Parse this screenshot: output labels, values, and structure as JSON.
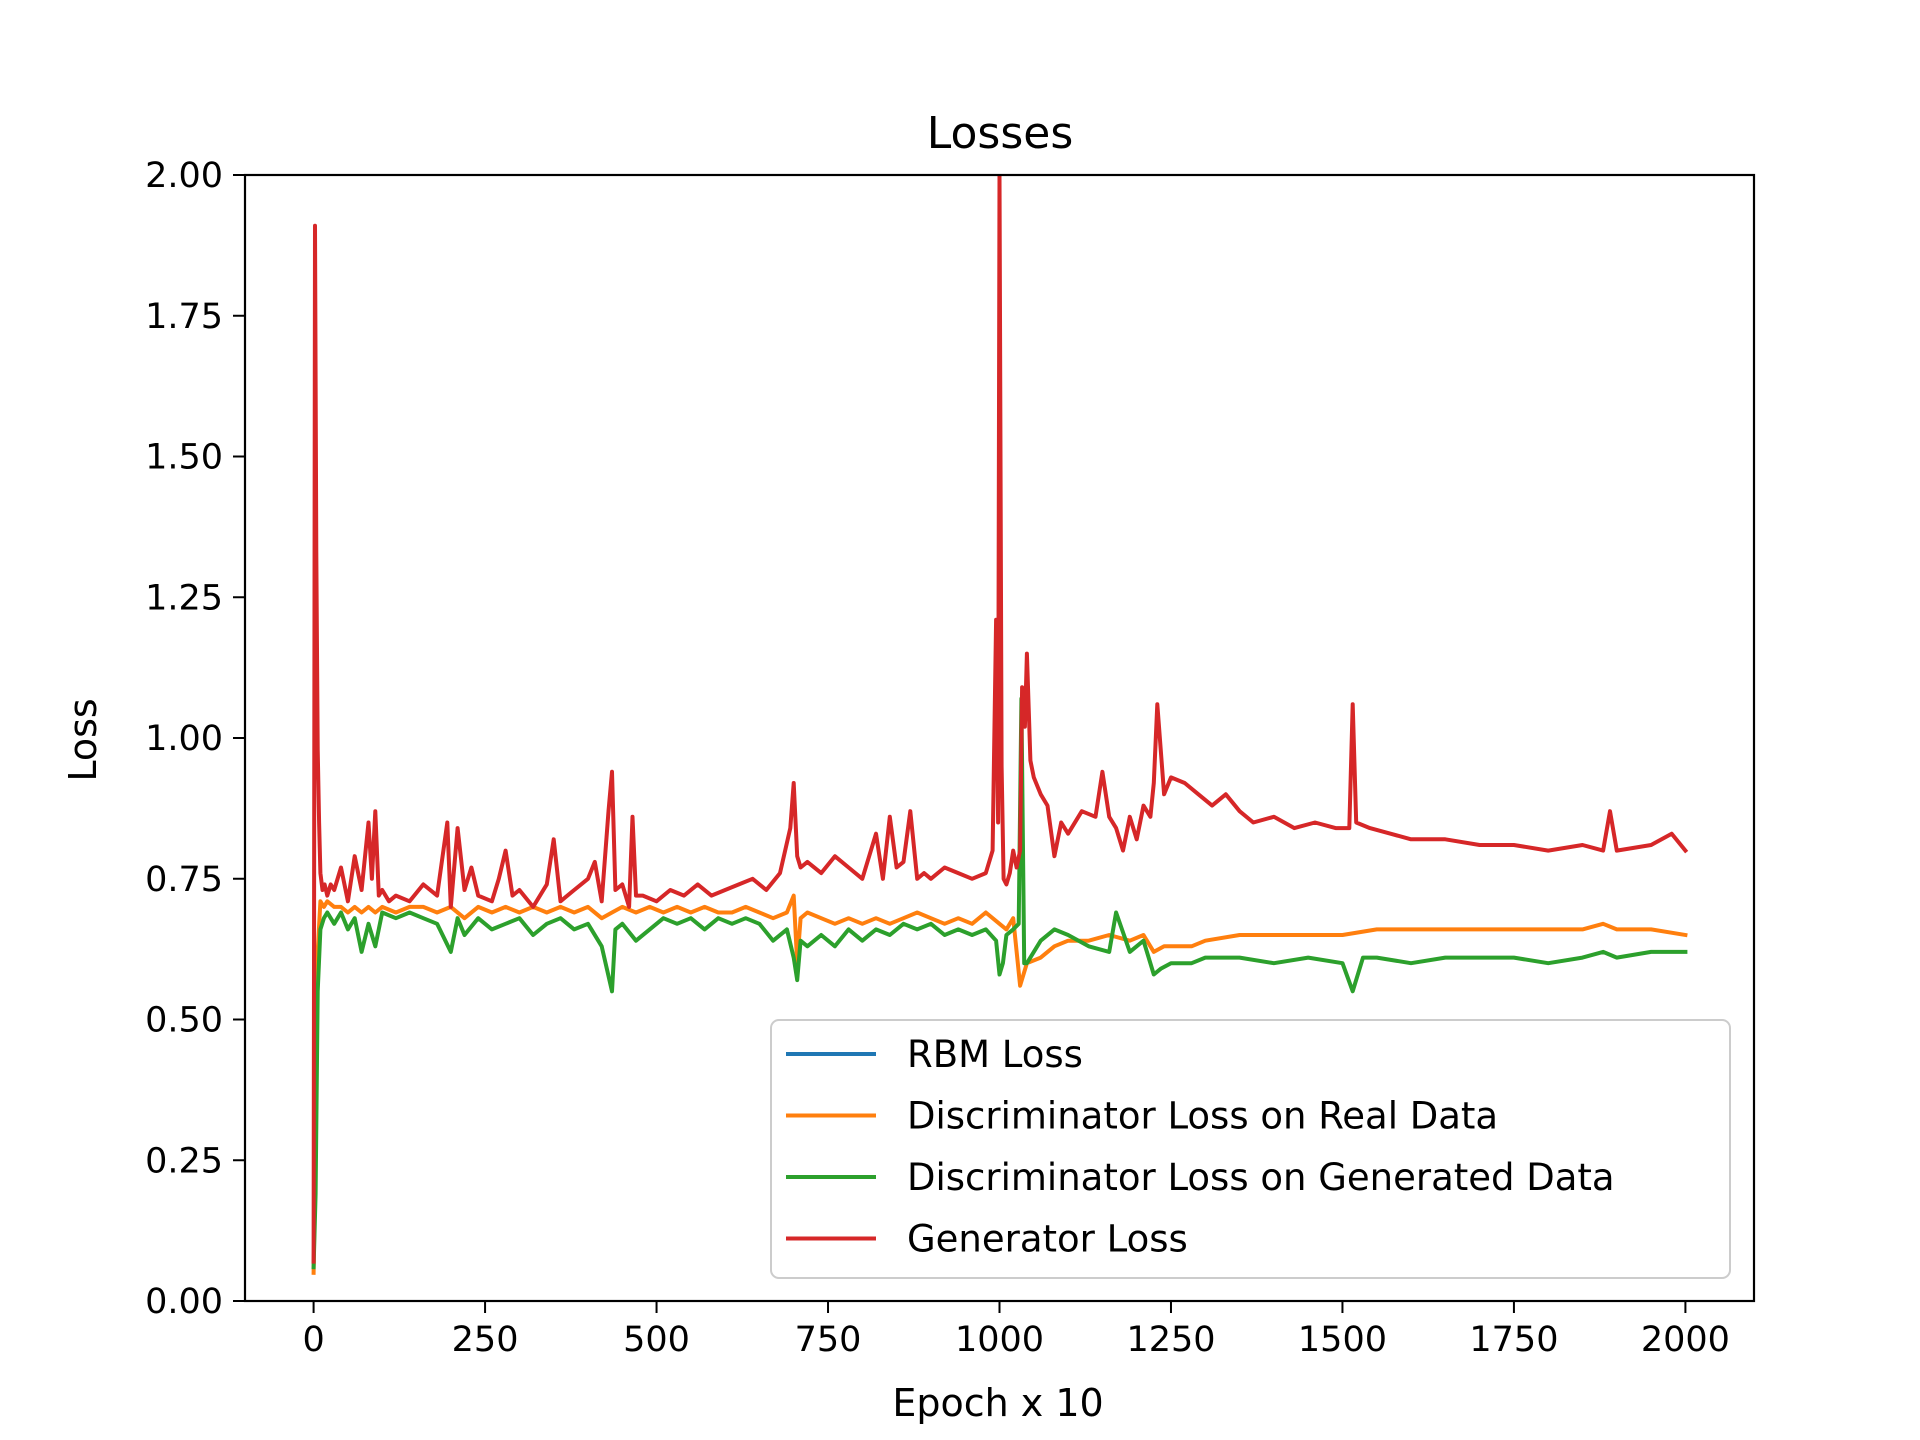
{
  "chart_data": {
    "type": "line",
    "title": "Losses",
    "xlabel": "Epoch x 10",
    "ylabel": "Loss",
    "xlim": [
      -100,
      2100
    ],
    "ylim": [
      0,
      2.0
    ],
    "xticks": [
      0,
      250,
      500,
      750,
      1000,
      1250,
      1500,
      1750,
      2000
    ],
    "xtick_labels": [
      "0",
      "250",
      "500",
      "750",
      "1000",
      "1250",
      "1500",
      "1750",
      "2000"
    ],
    "yticks": [
      0,
      0.25,
      0.5,
      0.75,
      1.0,
      1.25,
      1.5,
      1.75,
      2.0
    ],
    "ytick_labels": [
      "0.00",
      "0.25",
      "0.50",
      "0.75",
      "1.00",
      "1.25",
      "1.50",
      "1.75",
      "2.00"
    ],
    "grid": false,
    "legend_position": "lower-right",
    "series": [
      {
        "name": "RBM Loss",
        "color": "#1f77b4",
        "x": [],
        "y": []
      },
      {
        "name": "Discriminator Loss on Real Data",
        "color": "#ff7f0e",
        "x": [
          0,
          3,
          6,
          10,
          15,
          20,
          30,
          40,
          50,
          60,
          70,
          80,
          90,
          100,
          120,
          140,
          160,
          180,
          200,
          220,
          240,
          260,
          280,
          300,
          320,
          340,
          360,
          380,
          400,
          420,
          435,
          450,
          470,
          490,
          510,
          530,
          550,
          570,
          590,
          610,
          630,
          650,
          670,
          690,
          700,
          705,
          710,
          720,
          740,
          760,
          780,
          800,
          820,
          840,
          860,
          880,
          900,
          920,
          940,
          960,
          980,
          1000,
          1010,
          1020,
          1030,
          1040,
          1060,
          1080,
          1100,
          1130,
          1160,
          1190,
          1210,
          1225,
          1240,
          1260,
          1280,
          1300,
          1350,
          1400,
          1450,
          1500,
          1550,
          1600,
          1650,
          1700,
          1750,
          1800,
          1850,
          1880,
          1900,
          1950,
          2000
        ],
        "y": [
          0.05,
          0.3,
          0.62,
          0.71,
          0.7,
          0.71,
          0.7,
          0.7,
          0.69,
          0.7,
          0.69,
          0.7,
          0.69,
          0.7,
          0.69,
          0.7,
          0.7,
          0.69,
          0.7,
          0.68,
          0.7,
          0.69,
          0.7,
          0.69,
          0.7,
          0.69,
          0.7,
          0.69,
          0.7,
          0.68,
          0.69,
          0.7,
          0.69,
          0.7,
          0.69,
          0.7,
          0.69,
          0.7,
          0.69,
          0.69,
          0.7,
          0.69,
          0.68,
          0.69,
          0.72,
          0.6,
          0.68,
          0.69,
          0.68,
          0.67,
          0.68,
          0.67,
          0.68,
          0.67,
          0.68,
          0.69,
          0.68,
          0.67,
          0.68,
          0.67,
          0.69,
          0.67,
          0.66,
          0.68,
          0.56,
          0.6,
          0.61,
          0.63,
          0.64,
          0.64,
          0.65,
          0.64,
          0.65,
          0.62,
          0.63,
          0.63,
          0.63,
          0.64,
          0.65,
          0.65,
          0.65,
          0.65,
          0.66,
          0.66,
          0.66,
          0.66,
          0.66,
          0.66,
          0.66,
          0.67,
          0.66,
          0.66,
          0.65
        ]
      },
      {
        "name": "Discriminator Loss on Generated Data",
        "color": "#2ca02c",
        "x": [
          0,
          3,
          6,
          10,
          15,
          20,
          30,
          40,
          50,
          60,
          70,
          80,
          90,
          100,
          120,
          140,
          160,
          180,
          200,
          210,
          220,
          240,
          260,
          280,
          300,
          320,
          340,
          360,
          380,
          400,
          420,
          435,
          440,
          450,
          470,
          490,
          510,
          530,
          550,
          570,
          590,
          610,
          630,
          650,
          670,
          690,
          700,
          705,
          710,
          720,
          740,
          760,
          780,
          800,
          820,
          840,
          860,
          880,
          900,
          920,
          940,
          960,
          980,
          995,
          1000,
          1005,
          1010,
          1020,
          1028,
          1032,
          1036,
          1040,
          1060,
          1080,
          1100,
          1130,
          1160,
          1170,
          1190,
          1210,
          1225,
          1235,
          1250,
          1280,
          1300,
          1350,
          1400,
          1450,
          1500,
          1515,
          1530,
          1550,
          1600,
          1650,
          1700,
          1750,
          1800,
          1850,
          1880,
          1900,
          1950,
          2000
        ],
        "y": [
          0.06,
          0.19,
          0.55,
          0.66,
          0.68,
          0.69,
          0.67,
          0.69,
          0.66,
          0.68,
          0.62,
          0.67,
          0.63,
          0.69,
          0.68,
          0.69,
          0.68,
          0.67,
          0.62,
          0.68,
          0.65,
          0.68,
          0.66,
          0.67,
          0.68,
          0.65,
          0.67,
          0.68,
          0.66,
          0.67,
          0.63,
          0.55,
          0.66,
          0.67,
          0.64,
          0.66,
          0.68,
          0.67,
          0.68,
          0.66,
          0.68,
          0.67,
          0.68,
          0.67,
          0.64,
          0.66,
          0.61,
          0.57,
          0.64,
          0.63,
          0.65,
          0.63,
          0.66,
          0.64,
          0.66,
          0.65,
          0.67,
          0.66,
          0.67,
          0.65,
          0.66,
          0.65,
          0.66,
          0.64,
          0.58,
          0.6,
          0.65,
          0.66,
          0.67,
          1.07,
          0.6,
          0.6,
          0.64,
          0.66,
          0.65,
          0.63,
          0.62,
          0.69,
          0.62,
          0.64,
          0.58,
          0.59,
          0.6,
          0.6,
          0.61,
          0.61,
          0.6,
          0.61,
          0.6,
          0.55,
          0.61,
          0.61,
          0.6,
          0.61,
          0.61,
          0.61,
          0.6,
          0.61,
          0.62,
          0.61,
          0.62,
          0.62
        ]
      },
      {
        "name": "Generator Loss",
        "color": "#d62728",
        "x": [
          0,
          2,
          4,
          6,
          8,
          10,
          13,
          16,
          20,
          25,
          30,
          40,
          50,
          60,
          70,
          80,
          85,
          90,
          95,
          100,
          110,
          120,
          140,
          160,
          180,
          195,
          200,
          210,
          220,
          230,
          240,
          260,
          270,
          280,
          290,
          300,
          320,
          340,
          350,
          360,
          380,
          400,
          410,
          420,
          430,
          435,
          440,
          450,
          460,
          465,
          470,
          480,
          500,
          520,
          540,
          560,
          580,
          600,
          620,
          640,
          660,
          680,
          695,
          700,
          705,
          710,
          720,
          740,
          760,
          780,
          800,
          820,
          830,
          840,
          850,
          860,
          870,
          880,
          890,
          900,
          920,
          940,
          960,
          980,
          990,
          995,
          998,
          1000,
          1003,
          1006,
          1010,
          1015,
          1020,
          1025,
          1030,
          1033,
          1037,
          1040,
          1045,
          1050,
          1060,
          1070,
          1080,
          1090,
          1100,
          1120,
          1140,
          1150,
          1160,
          1170,
          1180,
          1190,
          1200,
          1210,
          1220,
          1225,
          1230,
          1240,
          1250,
          1270,
          1290,
          1310,
          1330,
          1350,
          1370,
          1400,
          1430,
          1460,
          1490,
          1510,
          1515,
          1520,
          1540,
          1570,
          1600,
          1650,
          1700,
          1750,
          1800,
          1850,
          1880,
          1890,
          1900,
          1950,
          1980,
          2000
        ],
        "y": [
          0.07,
          1.91,
          1.33,
          0.98,
          0.85,
          0.76,
          0.73,
          0.74,
          0.72,
          0.74,
          0.73,
          0.77,
          0.71,
          0.79,
          0.73,
          0.85,
          0.75,
          0.87,
          0.72,
          0.73,
          0.71,
          0.72,
          0.71,
          0.74,
          0.72,
          0.85,
          0.7,
          0.84,
          0.73,
          0.77,
          0.72,
          0.71,
          0.75,
          0.8,
          0.72,
          0.73,
          0.7,
          0.74,
          0.82,
          0.71,
          0.73,
          0.75,
          0.78,
          0.71,
          0.87,
          0.94,
          0.73,
          0.74,
          0.7,
          0.86,
          0.72,
          0.72,
          0.71,
          0.73,
          0.72,
          0.74,
          0.72,
          0.73,
          0.74,
          0.75,
          0.73,
          0.76,
          0.84,
          0.92,
          0.79,
          0.77,
          0.78,
          0.76,
          0.79,
          0.77,
          0.75,
          0.83,
          0.75,
          0.86,
          0.77,
          0.78,
          0.87,
          0.75,
          0.76,
          0.75,
          0.77,
          0.76,
          0.75,
          0.76,
          0.8,
          1.21,
          0.85,
          2.0,
          0.95,
          0.75,
          0.74,
          0.76,
          0.8,
          0.77,
          0.8,
          1.09,
          1.02,
          1.15,
          0.96,
          0.93,
          0.9,
          0.88,
          0.79,
          0.85,
          0.83,
          0.87,
          0.86,
          0.94,
          0.86,
          0.84,
          0.8,
          0.86,
          0.82,
          0.88,
          0.86,
          0.92,
          1.06,
          0.9,
          0.93,
          0.92,
          0.9,
          0.88,
          0.9,
          0.87,
          0.85,
          0.86,
          0.84,
          0.85,
          0.84,
          0.84,
          1.06,
          0.85,
          0.84,
          0.83,
          0.82,
          0.82,
          0.81,
          0.81,
          0.8,
          0.81,
          0.8,
          0.87,
          0.8,
          0.81,
          0.83,
          0.8
        ]
      }
    ]
  }
}
